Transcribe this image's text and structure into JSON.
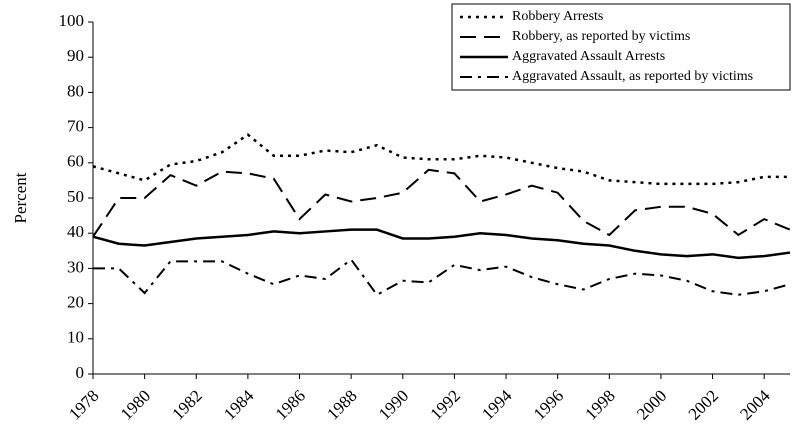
{
  "chart_data": {
    "type": "line",
    "y_label": "Percent",
    "x": [
      1978,
      1979,
      1980,
      1981,
      1982,
      1983,
      1984,
      1985,
      1986,
      1987,
      1988,
      1989,
      1990,
      1991,
      1992,
      1993,
      1994,
      1995,
      1996,
      1997,
      1998,
      1999,
      2000,
      2001,
      2002,
      2003,
      2004,
      2005
    ],
    "xlim": [
      1978,
      2005
    ],
    "xticks": [
      1978,
      1980,
      1982,
      1984,
      1986,
      1988,
      1990,
      1992,
      1994,
      1996,
      1998,
      2000,
      2002,
      2004
    ],
    "ylim": [
      0,
      100
    ],
    "yticks": [
      0,
      10,
      20,
      30,
      40,
      50,
      60,
      70,
      80,
      90,
      100
    ],
    "legend": "upper-right",
    "series": [
      {
        "name": "Robbery Arrests",
        "color": "#000000",
        "dash": "dotted",
        "values": [
          59,
          57,
          55,
          59.5,
          60.5,
          63,
          68,
          62,
          62,
          63.5,
          63,
          65,
          61.5,
          61,
          61,
          62,
          61.5,
          60,
          58.5,
          57.5,
          55,
          54.5,
          54,
          54,
          54,
          54.5,
          56,
          56
        ]
      },
      {
        "name": "Robbery, as reported by victims",
        "color": "#000000",
        "dash": "dashed",
        "values": [
          39,
          50,
          50,
          56.5,
          53.5,
          57.5,
          57,
          55.5,
          44,
          51,
          49,
          50,
          51.5,
          58,
          57,
          49,
          51,
          53.5,
          51.5,
          43.5,
          39.5,
          46.5,
          47.5,
          47.5,
          45.5,
          39.5,
          44,
          41
        ]
      },
      {
        "name": "Aggravated Assault Arrests",
        "color": "#000000",
        "dash": "solid",
        "values": [
          39,
          37,
          36.5,
          37.5,
          38.5,
          39,
          39.5,
          40.5,
          40,
          40.5,
          41,
          41,
          38.5,
          38.5,
          39,
          40,
          39.5,
          38.5,
          38,
          37,
          36.5,
          35,
          34,
          33.5,
          34,
          33,
          33.5,
          34.5
        ]
      },
      {
        "name": "Aggravated Assault, as reported by victims",
        "color": "#000000",
        "dash": "dashdot",
        "values": [
          30,
          30,
          23,
          32,
          32,
          32,
          28.5,
          25.5,
          28,
          27,
          32.5,
          22.5,
          26.5,
          26,
          31,
          29.5,
          30.5,
          27.5,
          25.5,
          24,
          27,
          28.5,
          28,
          26.5,
          23.5,
          22.5,
          23.5,
          25.5
        ]
      }
    ]
  }
}
